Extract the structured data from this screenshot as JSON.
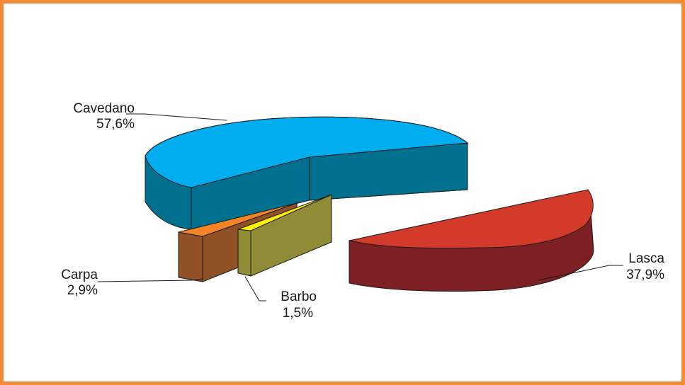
{
  "chart_data": {
    "type": "pie",
    "style": "3d-exploded",
    "categories": [
      "Cavedano",
      "Lasca",
      "Carpa",
      "Barbo"
    ],
    "values": [
      57.6,
      37.9,
      2.9,
      1.5
    ],
    "value_labels": [
      "57,6%",
      "37,9%",
      "2,9%",
      "1,5%"
    ],
    "unit": "%",
    "title": "",
    "legend": "none",
    "grid": false
  },
  "colors": {
    "frame": "#f28a36",
    "Cavedano": {
      "top": "#00aeef",
      "side": "#00708e"
    },
    "Lasca": {
      "top": "#d33a2a",
      "side": "#7c2023"
    },
    "Carpa": {
      "top": "#f58426",
      "side": "#8f5125"
    },
    "Barbo": {
      "top": "#fff200",
      "side": "#8f8c35"
    }
  }
}
